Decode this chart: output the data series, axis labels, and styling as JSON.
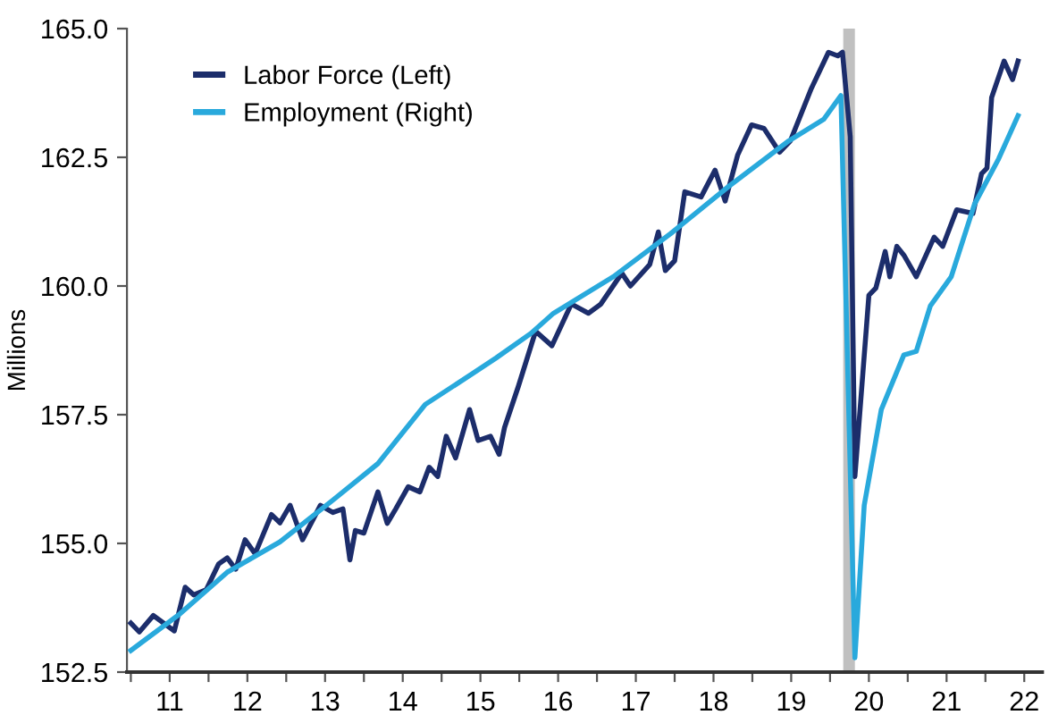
{
  "chart_data": {
    "type": "line",
    "ylabel": "Millions",
    "legend": "top left",
    "grid": false,
    "xlim": [
      10.45,
      22.23
    ],
    "ylim": [
      152.5,
      165.0
    ],
    "xticks": [
      {
        "value": 10.5,
        "label": null
      },
      11,
      {
        "value": 11.5,
        "label": null
      },
      12,
      {
        "value": 12.5,
        "label": null
      },
      13,
      {
        "value": 13.5,
        "label": null
      },
      14,
      {
        "value": 14.5,
        "label": null
      },
      15,
      {
        "value": 15.5,
        "label": null
      },
      16,
      {
        "value": 16.5,
        "label": null
      },
      17,
      {
        "value": 17.5,
        "label": null
      },
      18,
      {
        "value": 18.5,
        "label": null
      },
      19,
      {
        "value": 19.5,
        "label": null
      },
      20,
      {
        "value": 20.5,
        "label": null
      },
      21,
      {
        "value": 21.5,
        "label": null
      },
      22
    ],
    "yticks": [
      152.5,
      {
        "value": 155,
        "label": "155.0"
      },
      157.5,
      {
        "value": 160,
        "label": "160.0"
      },
      162.5,
      {
        "value": 165,
        "label": "165.0"
      }
    ],
    "bands": [
      {
        "axis": "x",
        "from": 19.67,
        "to": 19.82,
        "color": "#c0c0c0"
      }
    ],
    "series": [
      {
        "name": "Labor Force (Left)",
        "color": "#1c2d6b",
        "x": [
          10.5,
          10.61,
          10.79,
          11.06,
          11.13,
          11.2,
          11.31,
          11.47,
          11.63,
          11.74,
          11.85,
          11.97,
          12.1,
          12.31,
          12.42,
          12.55,
          12.71,
          12.94,
          13.1,
          13.23,
          13.32,
          13.39,
          13.5,
          13.68,
          13.8,
          13.91,
          14.07,
          14.22,
          14.34,
          14.45,
          14.56,
          14.68,
          14.86,
          14.97,
          15.13,
          15.24,
          15.31,
          15.49,
          15.71,
          15.92,
          16.17,
          16.39,
          16.55,
          16.82,
          16.93,
          17.18,
          17.29,
          17.38,
          17.5,
          17.63,
          17.84,
          18.02,
          18.15,
          18.31,
          18.49,
          18.65,
          18.85,
          18.99,
          19.26,
          19.48,
          19.6,
          19.66,
          19.76,
          19.82,
          20.0,
          20.09,
          20.21,
          20.27,
          20.36,
          20.45,
          20.61,
          20.84,
          20.95,
          21.13,
          21.34,
          21.45,
          21.52,
          21.58,
          21.74,
          21.85,
          21.92
        ],
        "values": [
          153.45,
          153.28,
          153.6,
          153.3,
          153.73,
          154.15,
          154.0,
          154.1,
          154.6,
          154.72,
          154.5,
          155.07,
          154.8,
          155.56,
          155.4,
          155.74,
          155.07,
          155.74,
          155.6,
          155.67,
          154.68,
          155.25,
          155.2,
          156.0,
          155.39,
          155.67,
          156.1,
          156.0,
          156.48,
          156.3,
          157.08,
          156.66,
          157.6,
          157.0,
          157.08,
          156.73,
          157.25,
          158.06,
          159.12,
          158.84,
          159.65,
          159.47,
          159.65,
          160.25,
          160.0,
          160.42,
          161.05,
          160.3,
          160.49,
          161.83,
          161.73,
          162.25,
          161.65,
          162.54,
          163.13,
          163.06,
          162.6,
          162.82,
          163.84,
          164.54,
          164.47,
          164.54,
          162.9,
          156.3,
          159.82,
          159.96,
          160.67,
          160.18,
          160.77,
          160.6,
          160.18,
          160.95,
          160.77,
          161.48,
          161.41,
          162.18,
          162.29,
          163.66,
          164.37,
          164.01,
          164.37
        ]
      },
      {
        "name": "Employment (Right)",
        "color": "#29a9dc",
        "x": [
          10.5,
          11.13,
          11.74,
          12.42,
          13.1,
          13.68,
          14.29,
          14.9,
          15.2,
          15.65,
          15.94,
          16.71,
          17.45,
          18.2,
          18.97,
          19.42,
          19.64,
          19.82,
          19.94,
          20.16,
          20.45,
          20.61,
          20.79,
          21.06,
          21.36,
          21.67,
          21.92
        ],
        "values": [
          152.92,
          153.63,
          154.44,
          155.03,
          155.84,
          156.55,
          157.7,
          158.3,
          158.6,
          159.08,
          159.47,
          160.18,
          161.02,
          161.94,
          162.82,
          163.24,
          163.7,
          152.78,
          155.74,
          157.6,
          158.66,
          158.73,
          159.61,
          160.18,
          161.59,
          162.47,
          163.31
        ]
      }
    ]
  }
}
